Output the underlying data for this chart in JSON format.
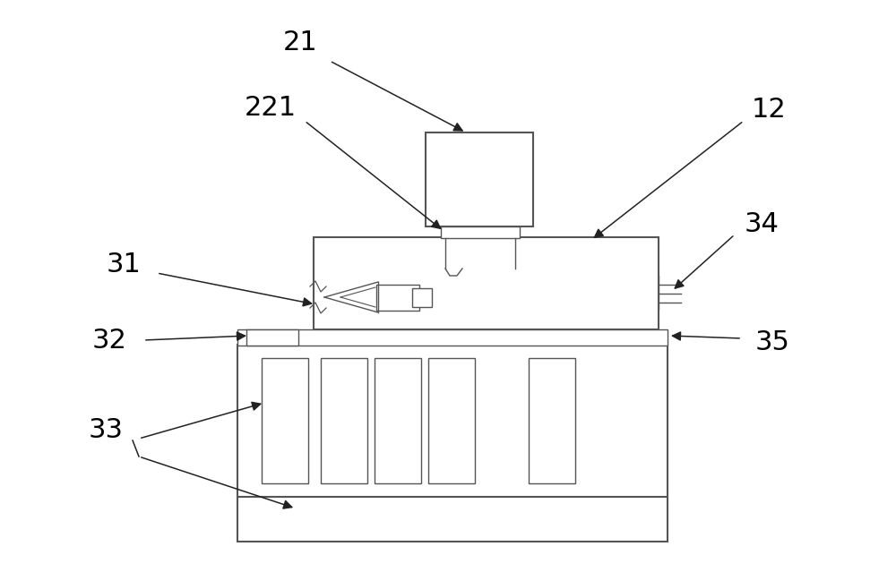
{
  "bg_color": "#ffffff",
  "line_color": "#555555",
  "line_width": 1.0,
  "thick_line": 1.5,
  "fig_width": 10.0,
  "fig_height": 6.39,
  "dpi": 100
}
